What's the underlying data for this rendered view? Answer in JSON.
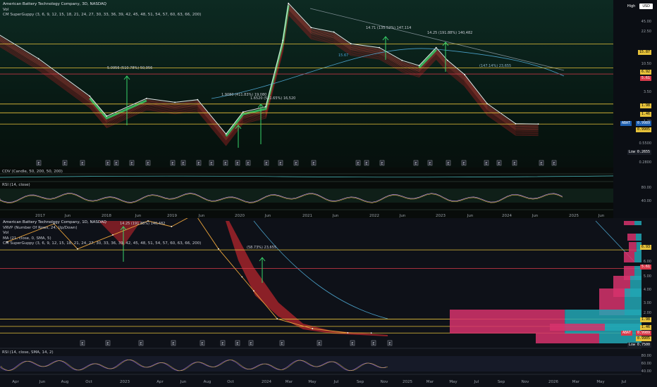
{
  "top": {
    "title": "American Battery Technology Company, 3D, NASDAQ",
    "vol": "Vol",
    "guppy": "CM SuperGuppy (3, 6, 9, 12, 15, 18, 21, 24, 27, 30, 33, 36, 39, 42, 45, 48, 51, 54, 57, 60, 63, 66, 200)",
    "cdv": "CDV (Candle, 50, 200, 50, 200)",
    "rsi": "RSI (14, close)",
    "x_labels": [
      "2017",
      "Jun",
      "2018",
      "Jun",
      "2019",
      "Jun",
      "2020",
      "Jun",
      "2021",
      "Jun",
      "2022",
      "Jun",
      "2023",
      "Jun",
      "2024",
      "Jun",
      "2025",
      "Jun"
    ],
    "price_ticks": [
      "45.00",
      "22.50",
      "10.50",
      "3.50",
      "1.20",
      "0.5500",
      "0.2800"
    ],
    "rsi_ticks": [
      "80.00",
      "40.00"
    ],
    "annotations": [
      "5.0956 (510.78%) 50,956",
      "14.71 (135.52%) 147,114",
      "14.25 (191.88%) 140,482",
      "1.9080 (411.83%) 19,080",
      "1.6520 (511.65%) 16,520",
      "(147.14%) 23,655",
      "15.67"
    ],
    "boxes": [
      {
        "text": "15.87",
        "color": "#e6c23a",
        "fg": "#000"
      },
      {
        "text": "6.92",
        "color": "#e6c23a",
        "fg": "#000"
      },
      {
        "text": "5.61",
        "color": "#d93a4a",
        "fg": "#fff"
      },
      {
        "text": "1.98",
        "color": "#e6c23a",
        "fg": "#000"
      },
      {
        "text": "1.46",
        "color": "#e6c23a",
        "fg": "#000"
      },
      {
        "text": "0.9989",
        "color": "#1e5fb0",
        "fg": "#fff"
      },
      {
        "text": "0.9905",
        "color": "#e6c23a",
        "fg": "#000"
      },
      {
        "text": "Low 0.2655",
        "color": "#1a1e27",
        "fg": "#fff"
      }
    ],
    "abat_tag": "ABAT"
  },
  "bottom": {
    "title": "American Battery Technology Company, 1D, NASDAQ",
    "vrvp": "VRVP (Number Of Rows, 24, Up/Down)",
    "vol": "Vol",
    "ma": "MA (21, close, 0, SMA, 5)",
    "guppy": "CM SuperGuppy (3, 6, 9, 12, 15, 18, 21, 24, 27, 30, 33, 36, 39, 42, 45, 48, 51, 54, 57, 60, 63, 66, 200)",
    "rsi": "RSI (14, close, SMA, 14, 2)",
    "x_labels": [
      "Apr",
      "Jun",
      "Aug",
      "Oct",
      "2023",
      "Apr",
      "Jun",
      "Aug",
      "Oct",
      "2024",
      "Mar",
      "May",
      "Jul",
      "Sep",
      "Nov",
      "2025",
      "Mar",
      "May",
      "Jul",
      "Sep",
      "Nov",
      "2026",
      "Mar",
      "May",
      "Jul"
    ],
    "price_ticks": [
      "6.00",
      "5.00",
      "4.00",
      "3.00",
      "2.00"
    ],
    "rsi_ticks": [
      "80.00",
      "60.00",
      "40.00"
    ],
    "annotations": [
      "14.25 (191.88%) 140,482",
      "(58.73%) 23,655"
    ],
    "boxes": [
      {
        "text": "6.93",
        "color": "#e6c23a",
        "fg": "#000"
      },
      {
        "text": "5.61",
        "color": "#d93a4a",
        "fg": "#fff"
      },
      {
        "text": "1.98",
        "color": "#e6c23a",
        "fg": "#000"
      },
      {
        "text": "1.46",
        "color": "#e6c23a",
        "fg": "#000"
      },
      {
        "text": "0.9989",
        "color": "#d93a4a",
        "fg": "#fff"
      },
      {
        "text": "0.9905",
        "color": "#e6c23a",
        "fg": "#000"
      },
      {
        "text": "Low 0.7500",
        "color": "#1a1e27",
        "fg": "#fff"
      }
    ],
    "abat_tag": "ABAT"
  },
  "header": {
    "high": "High",
    "currency": "USD"
  },
  "chart_data": [
    {
      "type": "line",
      "title": "American Battery Technology Company, 3D, NASDAQ",
      "log_scale": true,
      "x": [
        "2016-11",
        "2017-06",
        "2018-03",
        "2018-06",
        "2019-01",
        "2019-06",
        "2019-10",
        "2020-03",
        "2020-06",
        "2020-10",
        "2021-01",
        "2021-02",
        "2021-06",
        "2021-10",
        "2022-01",
        "2022-06",
        "2022-10",
        "2023-01",
        "2023-04",
        "2023-06",
        "2023-09",
        "2024-01",
        "2024-06",
        "2024-10"
      ],
      "series": [
        {
          "values": [
            22.0,
            9.5,
            2.6,
            1.3,
            2.4,
            2.1,
            2.3,
            0.7,
            1.5,
            1.8,
            18.0,
            65.0,
            28.0,
            24.0,
            16.0,
            14.0,
            9.0,
            7.5,
            14.0,
            9.0,
            5.5,
            2.0,
            1.0,
            0.99
          ]
        }
      ],
      "horizontal_levels": [
        15.87,
        6.92,
        5.61,
        1.98,
        1.46,
        0.9905
      ],
      "ylim": [
        0.28,
        60
      ]
    },
    {
      "type": "line",
      "title": "American Battery Technology Company, 1D, NASDAQ",
      "x": [
        "2022-04",
        "2022-08",
        "2022-10",
        "2023-01",
        "2023-04",
        "2023-06",
        "2023-08",
        "2023-10",
        "2023-12",
        "2024-01",
        "2024-03",
        "2024-06",
        "2024-09",
        "2024-11"
      ],
      "series": [
        {
          "values": [
            7.5,
            8.8,
            7.0,
            8.0,
            9.0,
            8.6,
            9.5,
            7.0,
            5.0,
            4.0,
            2.0,
            1.3,
            1.0,
            0.99
          ]
        }
      ],
      "horizontal_levels": [
        6.93,
        5.61,
        1.98,
        1.46,
        0.9905
      ],
      "ylim": [
        0.75,
        9.0
      ]
    }
  ]
}
